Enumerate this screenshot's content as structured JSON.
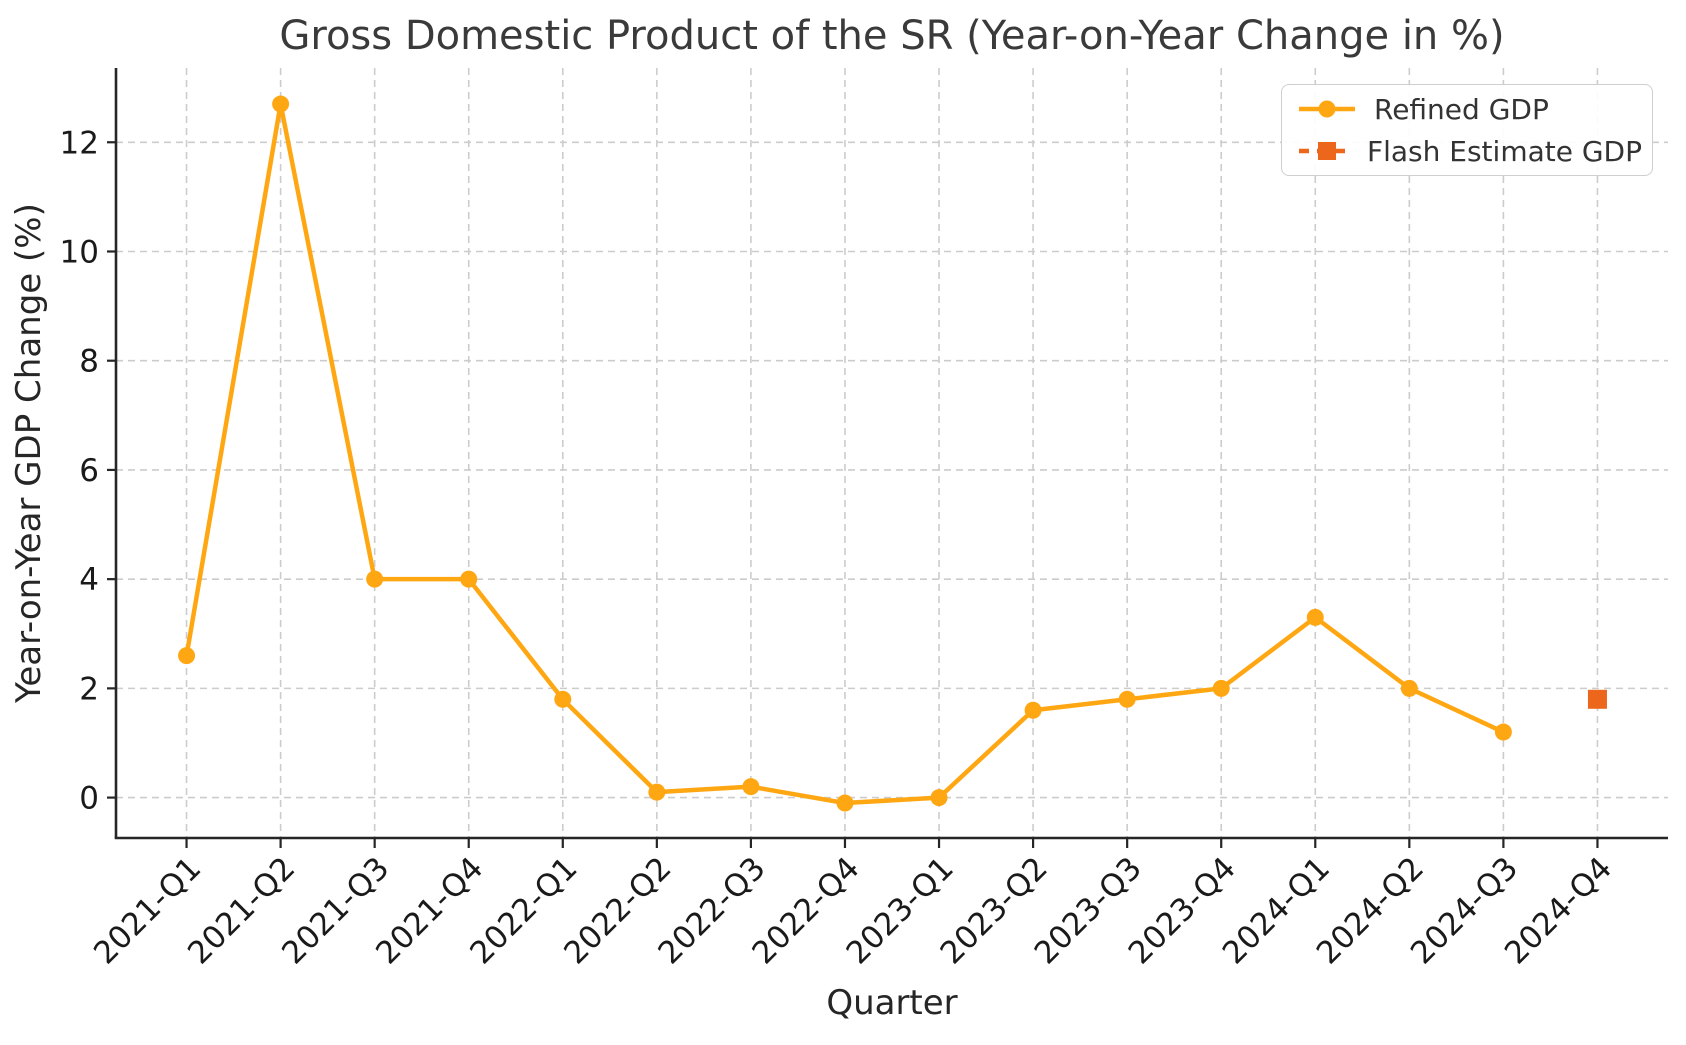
{
  "figure": {
    "title": "Gross Domestic Product of the SR (Year-on-Year Change in %)",
    "xlabel": "Quarter",
    "ylabel": "Year-on-Year GDP Change (%)"
  },
  "legend": {
    "items": [
      {
        "label": "Refined GDP",
        "series": "refined",
        "marker": "circle",
        "linestyle": "solid"
      },
      {
        "label": "Flash Estimate GDP",
        "series": "flash",
        "marker": "square",
        "linestyle": "dashed"
      }
    ]
  },
  "colors": {
    "refined": "#FFA713",
    "flash": "#EC661C",
    "grid": "#cccccc",
    "spine": "#262626",
    "tick_text": "#1a1a1a"
  },
  "chart_data": {
    "type": "line",
    "title": "Gross Domestic Product of the SR (Year-on-Year Change in %)",
    "xlabel": "Quarter",
    "ylabel": "Year-on-Year GDP Change (%)",
    "categories": [
      "2021-Q1",
      "2021-Q2",
      "2021-Q3",
      "2021-Q4",
      "2022-Q1",
      "2022-Q2",
      "2022-Q3",
      "2022-Q4",
      "2023-Q1",
      "2023-Q2",
      "2023-Q3",
      "2023-Q4",
      "2024-Q1",
      "2024-Q2",
      "2024-Q3",
      "2024-Q4"
    ],
    "series": [
      {
        "name": "Refined GDP",
        "color_key": "refined",
        "marker": "circle",
        "linestyle": "solid",
        "x": [
          0,
          1,
          2,
          3,
          4,
          5,
          6,
          7,
          8,
          9,
          10,
          11,
          12,
          13,
          14
        ],
        "values": [
          2.6,
          12.7,
          4.0,
          4.0,
          1.8,
          0.1,
          0.2,
          -0.1,
          0.0,
          1.6,
          1.8,
          2.0,
          3.3,
          2.0,
          1.2
        ]
      },
      {
        "name": "Flash Estimate GDP",
        "color_key": "flash",
        "marker": "square",
        "linestyle": "dashed",
        "x": [
          15
        ],
        "values": [
          1.8
        ]
      }
    ],
    "yticks": [
      0,
      2,
      4,
      6,
      8,
      10,
      12
    ],
    "ylim": [
      -0.74,
      13.36
    ],
    "xlim": [
      -0.75,
      15.75
    ],
    "grid": true,
    "grid_style": "dashed",
    "legend_position": "upper right"
  }
}
